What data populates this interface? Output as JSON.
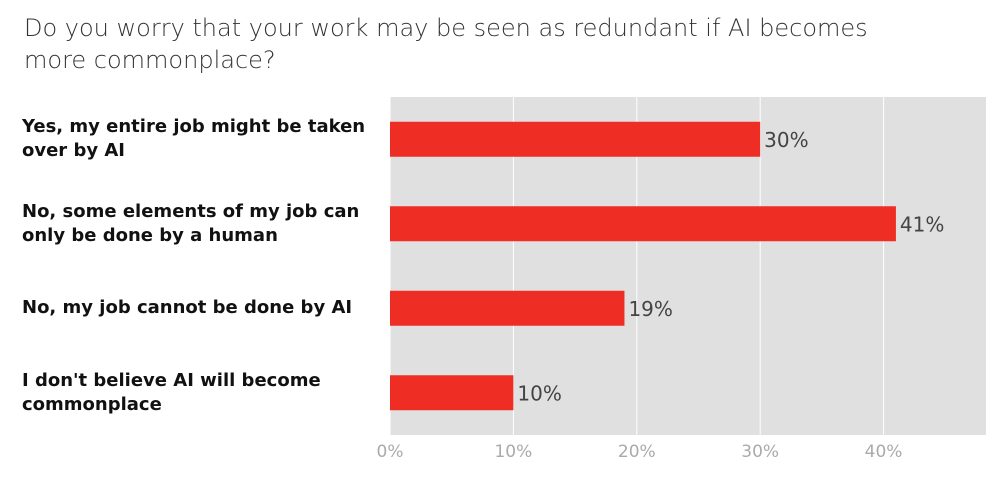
{
  "chart_data": {
    "type": "bar",
    "orientation": "horizontal",
    "title": "Do you worry that your work may be seen as redundant if AI becomes more commonplace?",
    "categories": [
      "Yes, my entire job might be taken over by AI",
      "No, some elements of my job can only be done by a human",
      "No, my job cannot be done by AI",
      "I don't believe AI will become commonplace"
    ],
    "values": [
      30,
      41,
      19,
      10
    ],
    "value_labels": [
      "30%",
      "41%",
      "19%",
      "10%"
    ],
    "color": "#ee2e24",
    "xlim": [
      0,
      48.3
    ],
    "xticks": [
      {
        "value": 0,
        "label": "0%"
      },
      {
        "value": 10,
        "label": "10%"
      },
      {
        "value": 20,
        "label": "20%"
      },
      {
        "value": 30,
        "label": "30%"
      },
      {
        "value": 40,
        "label": "40%"
      }
    ],
    "grid": true
  }
}
